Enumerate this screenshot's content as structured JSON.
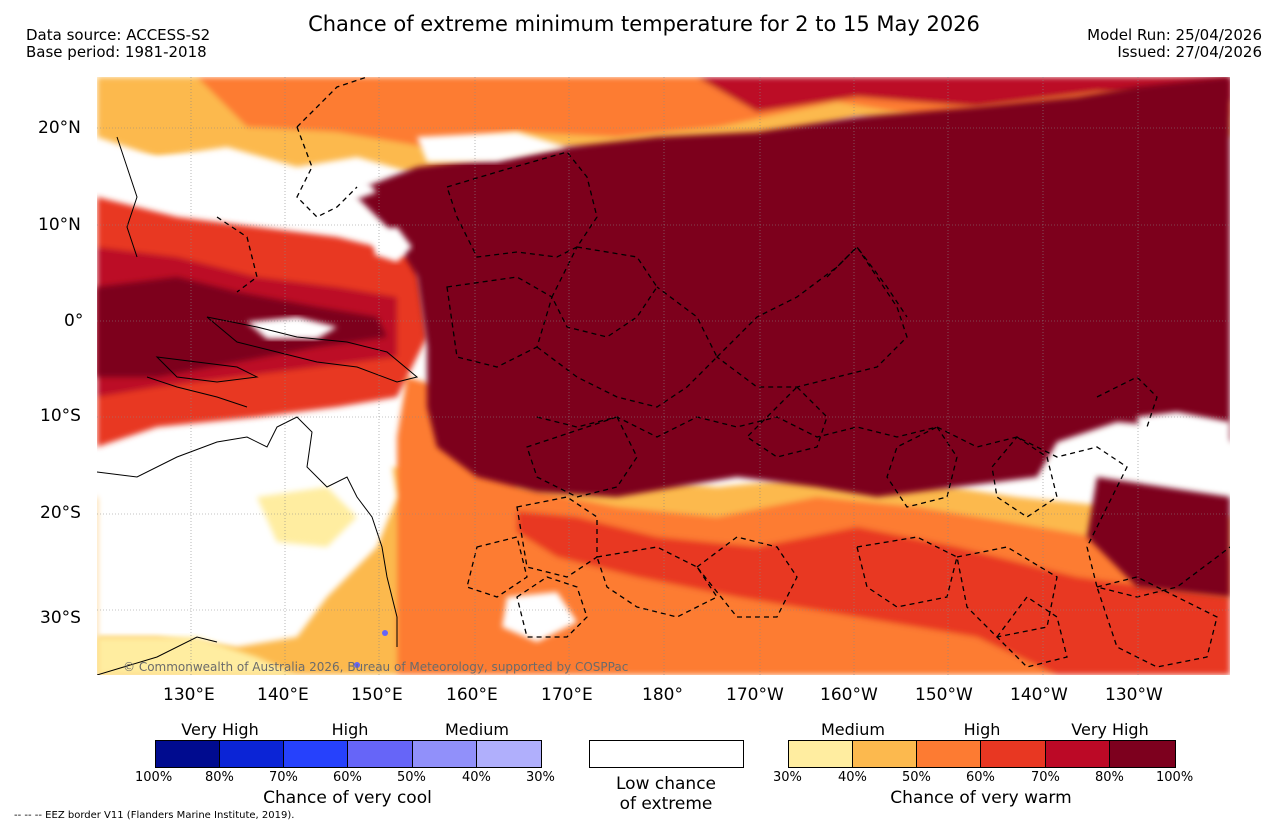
{
  "header": {
    "data_source": "Data source: ACCESS-S2",
    "base_period": "Base period: 1981-2018",
    "title": "Chance of extreme minimum temperature for 2 to 15 May 2026",
    "model_run": "Model Run: 25/04/2026",
    "issued": "Issued: 27/04/2026"
  },
  "map": {
    "copyright": "© Commonwealth of Australia 2026, Bureau of Meteorology, supported by COSPPac",
    "lat_labels": [
      "20°N",
      "10°N",
      "0°",
      "10°S",
      "20°S",
      "30°S"
    ],
    "lon_labels": [
      "130°E",
      "140°E",
      "150°E",
      "160°E",
      "170°E",
      "180°",
      "170°W",
      "160°W",
      "150°W",
      "140°W",
      "130°W"
    ]
  },
  "legend": {
    "cool": {
      "headings": [
        "Very High",
        "High",
        "Medium"
      ],
      "ticks": [
        "100%",
        "80%",
        "70%",
        "60%",
        "50%",
        "40%",
        "30%"
      ],
      "colors": [
        "#000b8f",
        "#0b24d6",
        "#2641fc",
        "#6665f8",
        "#9190fa",
        "#b0affc"
      ],
      "title": "Chance of very cool"
    },
    "low": {
      "line1": "Low chance",
      "line2": "of extreme"
    },
    "warm": {
      "headings": [
        "Medium",
        "High",
        "Very High"
      ],
      "ticks": [
        "30%",
        "40%",
        "50%",
        "60%",
        "70%",
        "80%",
        "100%"
      ],
      "colors": [
        "#ffeda0",
        "#fcb94e",
        "#fd7b32",
        "#e83722",
        "#bc0926",
        "#7d001e"
      ],
      "title": "Chance of very warm"
    }
  },
  "footer": {
    "eez": "--  --  -- EEZ border V11 (Flanders Marine Institute, 2019)."
  }
}
